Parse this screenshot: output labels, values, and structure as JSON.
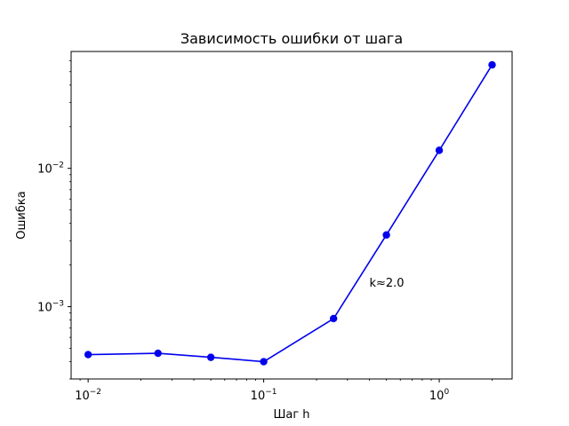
{
  "chart_data": {
    "type": "line",
    "title": "Зависимость ошибки от шага",
    "xlabel": "Шаг h",
    "ylabel": "Ошибка",
    "xscale": "log",
    "yscale": "log",
    "xlim": [
      0.008,
      2.6
    ],
    "ylim": [
      0.0003,
      0.07
    ],
    "grid": false,
    "x": [
      0.01,
      0.025,
      0.05,
      0.1,
      0.25,
      0.5,
      1.0,
      2.0
    ],
    "series": [
      {
        "color": "#0000ee",
        "marker": "circle",
        "values": [
          0.00045,
          0.00046,
          0.00043,
          0.0004,
          0.00082,
          0.0033,
          0.0135,
          0.056
        ]
      }
    ],
    "x_major_ticks": [
      {
        "value": 0.01,
        "base": "10",
        "exp": "−2"
      },
      {
        "value": 0.1,
        "base": "10",
        "exp": "−1"
      },
      {
        "value": 1,
        "base": "10",
        "exp": "0"
      }
    ],
    "y_major_ticks": [
      {
        "value": 0.001,
        "base": "10",
        "exp": "−3"
      },
      {
        "value": 0.01,
        "base": "10",
        "exp": "−2"
      }
    ],
    "annotation": {
      "text": "k≈2.0",
      "x": 0.4,
      "y": 0.0015
    }
  }
}
